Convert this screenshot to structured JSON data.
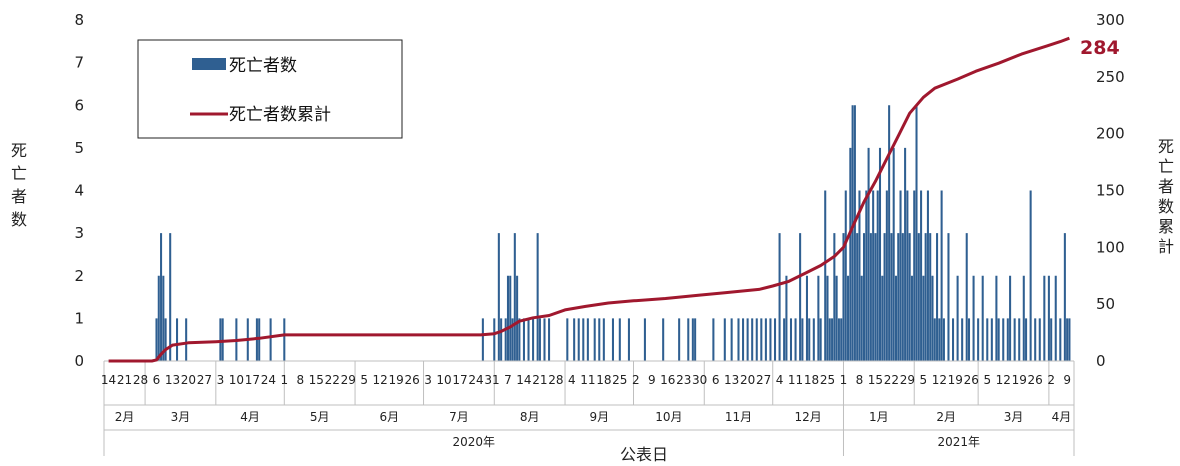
{
  "chart_data": {
    "type": "bar",
    "xlabel": "公表日",
    "ylabel_left": "死亡者数",
    "ylabel_right": "死亡者数累計",
    "ylim_left": [
      0,
      8
    ],
    "ylim_right": [
      0,
      300
    ],
    "left_ticks": [
      "0",
      "1",
      "2",
      "3",
      "4",
      "5",
      "6",
      "7",
      "8"
    ],
    "right_ticks": [
      "0",
      "50",
      "100",
      "150",
      "200",
      "250",
      "300"
    ],
    "grid": false,
    "legend_position": "top-left",
    "colors": {
      "bars": "#2f5f91",
      "line": "#a0182e"
    },
    "series": [
      {
        "name": "死亡者数",
        "type": "bar",
        "axis": "left"
      },
      {
        "name": "死亡者数累計",
        "type": "line",
        "axis": "right"
      }
    ],
    "end_value_label": "284",
    "day_ticks": [
      "14",
      "21",
      "28",
      "6",
      "13",
      "20",
      "27",
      "3",
      "10",
      "17",
      "24",
      "1",
      "8",
      "15",
      "22",
      "29",
      "5",
      "12",
      "19",
      "26",
      "3",
      "10",
      "17",
      "24",
      "31",
      "7",
      "14",
      "21",
      "28",
      "4",
      "11",
      "18",
      "25",
      "2",
      "9",
      "16",
      "23",
      "30",
      "6",
      "13",
      "20",
      "27",
      "4",
      "11",
      "18",
      "25",
      "1",
      "8",
      "15",
      "22",
      "29",
      "5",
      "12",
      "19",
      "26",
      "5",
      "12",
      "19",
      "26",
      "2",
      "9"
    ],
    "month_ticks": [
      "2月",
      "3月",
      "4月",
      "5月",
      "6月",
      "7月",
      "8月",
      "9月",
      "10月",
      "11月",
      "12月",
      "1月",
      "2月",
      "3月",
      "4月"
    ],
    "year_ticks": [
      "2020年",
      "2021年"
    ],
    "daily_bars": [
      {
        "date": "2020-03-06",
        "v": 1
      },
      {
        "date": "2020-03-07",
        "v": 2
      },
      {
        "date": "2020-03-08",
        "v": 3
      },
      {
        "date": "2020-03-09",
        "v": 2
      },
      {
        "date": "2020-03-10",
        "v": 1
      },
      {
        "date": "2020-03-12",
        "v": 3
      },
      {
        "date": "2020-03-15",
        "v": 1
      },
      {
        "date": "2020-03-19",
        "v": 1
      },
      {
        "date": "2020-04-03",
        "v": 1
      },
      {
        "date": "2020-04-04",
        "v": 1
      },
      {
        "date": "2020-04-10",
        "v": 1
      },
      {
        "date": "2020-04-15",
        "v": 1
      },
      {
        "date": "2020-04-19",
        "v": 1
      },
      {
        "date": "2020-04-20",
        "v": 1
      },
      {
        "date": "2020-04-25",
        "v": 1
      },
      {
        "date": "2020-05-01",
        "v": 1
      },
      {
        "date": "2020-07-27",
        "v": 1
      },
      {
        "date": "2020-08-01",
        "v": 1
      },
      {
        "date": "2020-08-03",
        "v": 3
      },
      {
        "date": "2020-08-04",
        "v": 1
      },
      {
        "date": "2020-08-06",
        "v": 1
      },
      {
        "date": "2020-08-07",
        "v": 2
      },
      {
        "date": "2020-08-08",
        "v": 2
      },
      {
        "date": "2020-08-09",
        "v": 1
      },
      {
        "date": "2020-08-10",
        "v": 3
      },
      {
        "date": "2020-08-11",
        "v": 2
      },
      {
        "date": "2020-08-12",
        "v": 1
      },
      {
        "date": "2020-08-14",
        "v": 1
      },
      {
        "date": "2020-08-16",
        "v": 1
      },
      {
        "date": "2020-08-18",
        "v": 1
      },
      {
        "date": "2020-08-20",
        "v": 3
      },
      {
        "date": "2020-08-21",
        "v": 1
      },
      {
        "date": "2020-08-23",
        "v": 1
      },
      {
        "date": "2020-08-25",
        "v": 1
      },
      {
        "date": "2020-09-02",
        "v": 1
      },
      {
        "date": "2020-09-05",
        "v": 1
      },
      {
        "date": "2020-09-07",
        "v": 1
      },
      {
        "date": "2020-09-09",
        "v": 1
      },
      {
        "date": "2020-09-11",
        "v": 1
      },
      {
        "date": "2020-09-14",
        "v": 1
      },
      {
        "date": "2020-09-16",
        "v": 1
      },
      {
        "date": "2020-09-18",
        "v": 1
      },
      {
        "date": "2020-09-22",
        "v": 1
      },
      {
        "date": "2020-09-25",
        "v": 1
      },
      {
        "date": "2020-09-29",
        "v": 1
      },
      {
        "date": "2020-10-06",
        "v": 1
      },
      {
        "date": "2020-10-14",
        "v": 1
      },
      {
        "date": "2020-10-21",
        "v": 1
      },
      {
        "date": "2020-10-25",
        "v": 1
      },
      {
        "date": "2020-10-27",
        "v": 1
      },
      {
        "date": "2020-10-28",
        "v": 1
      },
      {
        "date": "2020-11-05",
        "v": 1
      },
      {
        "date": "2020-11-10",
        "v": 1
      },
      {
        "date": "2020-11-13",
        "v": 1
      },
      {
        "date": "2020-11-16",
        "v": 1
      },
      {
        "date": "2020-11-18",
        "v": 1
      },
      {
        "date": "2020-11-20",
        "v": 1
      },
      {
        "date": "2020-11-22",
        "v": 1
      },
      {
        "date": "2020-11-24",
        "v": 1
      },
      {
        "date": "2020-11-26",
        "v": 1
      },
      {
        "date": "2020-11-28",
        "v": 1
      },
      {
        "date": "2020-11-30",
        "v": 1
      },
      {
        "date": "2020-12-02",
        "v": 1
      },
      {
        "date": "2020-12-04",
        "v": 3
      },
      {
        "date": "2020-12-06",
        "v": 1
      },
      {
        "date": "2020-12-07",
        "v": 2
      },
      {
        "date": "2020-12-09",
        "v": 1
      },
      {
        "date": "2020-12-11",
        "v": 1
      },
      {
        "date": "2020-12-13",
        "v": 3
      },
      {
        "date": "2020-12-14",
        "v": 1
      },
      {
        "date": "2020-12-16",
        "v": 2
      },
      {
        "date": "2020-12-17",
        "v": 1
      },
      {
        "date": "2020-12-19",
        "v": 1
      },
      {
        "date": "2020-12-21",
        "v": 2
      },
      {
        "date": "2020-12-22",
        "v": 1
      },
      {
        "date": "2020-12-24",
        "v": 4
      },
      {
        "date": "2020-12-25",
        "v": 2
      },
      {
        "date": "2020-12-26",
        "v": 1
      },
      {
        "date": "2020-12-27",
        "v": 1
      },
      {
        "date": "2020-12-28",
        "v": 3
      },
      {
        "date": "2020-12-29",
        "v": 2
      },
      {
        "date": "2020-12-30",
        "v": 1
      },
      {
        "date": "2020-12-31",
        "v": 1
      },
      {
        "date": "2021-01-01",
        "v": 3
      },
      {
        "date": "2021-01-02",
        "v": 4
      },
      {
        "date": "2021-01-03",
        "v": 2
      },
      {
        "date": "2021-01-04",
        "v": 5
      },
      {
        "date": "2021-01-05",
        "v": 6
      },
      {
        "date": "2021-01-06",
        "v": 6
      },
      {
        "date": "2021-01-07",
        "v": 3
      },
      {
        "date": "2021-01-08",
        "v": 4
      },
      {
        "date": "2021-01-09",
        "v": 2
      },
      {
        "date": "2021-01-10",
        "v": 3
      },
      {
        "date": "2021-01-11",
        "v": 4
      },
      {
        "date": "2021-01-12",
        "v": 5
      },
      {
        "date": "2021-01-13",
        "v": 3
      },
      {
        "date": "2021-01-14",
        "v": 4
      },
      {
        "date": "2021-01-15",
        "v": 3
      },
      {
        "date": "2021-01-16",
        "v": 4
      },
      {
        "date": "2021-01-17",
        "v": 5
      },
      {
        "date": "2021-01-18",
        "v": 2
      },
      {
        "date": "2021-01-19",
        "v": 3
      },
      {
        "date": "2021-01-20",
        "v": 4
      },
      {
        "date": "2021-01-21",
        "v": 6
      },
      {
        "date": "2021-01-22",
        "v": 3
      },
      {
        "date": "2021-01-23",
        "v": 5
      },
      {
        "date": "2021-01-24",
        "v": 2
      },
      {
        "date": "2021-01-25",
        "v": 3
      },
      {
        "date": "2021-01-26",
        "v": 4
      },
      {
        "date": "2021-01-27",
        "v": 3
      },
      {
        "date": "2021-01-28",
        "v": 5
      },
      {
        "date": "2021-01-29",
        "v": 4
      },
      {
        "date": "2021-01-30",
        "v": 3
      },
      {
        "date": "2021-01-31",
        "v": 2
      },
      {
        "date": "2021-02-01",
        "v": 4
      },
      {
        "date": "2021-02-02",
        "v": 6
      },
      {
        "date": "2021-02-03",
        "v": 3
      },
      {
        "date": "2021-02-04",
        "v": 4
      },
      {
        "date": "2021-02-05",
        "v": 2
      },
      {
        "date": "2021-02-06",
        "v": 3
      },
      {
        "date": "2021-02-07",
        "v": 4
      },
      {
        "date": "2021-02-08",
        "v": 3
      },
      {
        "date": "2021-02-09",
        "v": 2
      },
      {
        "date": "2021-02-10",
        "v": 1
      },
      {
        "date": "2021-02-11",
        "v": 3
      },
      {
        "date": "2021-02-12",
        "v": 1
      },
      {
        "date": "2021-02-13",
        "v": 4
      },
      {
        "date": "2021-02-14",
        "v": 1
      },
      {
        "date": "2021-02-16",
        "v": 3
      },
      {
        "date": "2021-02-18",
        "v": 1
      },
      {
        "date": "2021-02-20",
        "v": 2
      },
      {
        "date": "2021-02-22",
        "v": 1
      },
      {
        "date": "2021-02-24",
        "v": 3
      },
      {
        "date": "2021-02-25",
        "v": 1
      },
      {
        "date": "2021-02-27",
        "v": 2
      },
      {
        "date": "2021-03-01",
        "v": 1
      },
      {
        "date": "2021-03-03",
        "v": 2
      },
      {
        "date": "2021-03-05",
        "v": 1
      },
      {
        "date": "2021-03-07",
        "v": 1
      },
      {
        "date": "2021-03-09",
        "v": 2
      },
      {
        "date": "2021-03-10",
        "v": 1
      },
      {
        "date": "2021-03-12",
        "v": 1
      },
      {
        "date": "2021-03-14",
        "v": 1
      },
      {
        "date": "2021-03-15",
        "v": 2
      },
      {
        "date": "2021-03-17",
        "v": 1
      },
      {
        "date": "2021-03-19",
        "v": 1
      },
      {
        "date": "2021-03-21",
        "v": 2
      },
      {
        "date": "2021-03-22",
        "v": 1
      },
      {
        "date": "2021-03-24",
        "v": 4
      },
      {
        "date": "2021-03-26",
        "v": 1
      },
      {
        "date": "2021-03-28",
        "v": 1
      },
      {
        "date": "2021-03-30",
        "v": 2
      },
      {
        "date": "2021-04-01",
        "v": 2
      },
      {
        "date": "2021-04-02",
        "v": 1
      },
      {
        "date": "2021-04-04",
        "v": 2
      },
      {
        "date": "2021-04-06",
        "v": 1
      },
      {
        "date": "2021-04-08",
        "v": 3
      },
      {
        "date": "2021-04-09",
        "v": 1
      },
      {
        "date": "2021-04-10",
        "v": 1
      }
    ],
    "cumulative": [
      {
        "date": "2020-02-14",
        "v": 0
      },
      {
        "date": "2020-03-04",
        "v": 0
      },
      {
        "date": "2020-03-06",
        "v": 1
      },
      {
        "date": "2020-03-08",
        "v": 6
      },
      {
        "date": "2020-03-10",
        "v": 10
      },
      {
        "date": "2020-03-13",
        "v": 14
      },
      {
        "date": "2020-03-20",
        "v": 16
      },
      {
        "date": "2020-04-01",
        "v": 17
      },
      {
        "date": "2020-04-10",
        "v": 18
      },
      {
        "date": "2020-04-20",
        "v": 20
      },
      {
        "date": "2020-05-01",
        "v": 23
      },
      {
        "date": "2020-07-26",
        "v": 23
      },
      {
        "date": "2020-08-01",
        "v": 24
      },
      {
        "date": "2020-08-04",
        "v": 26
      },
      {
        "date": "2020-08-08",
        "v": 30
      },
      {
        "date": "2020-08-12",
        "v": 35
      },
      {
        "date": "2020-08-18",
        "v": 38
      },
      {
        "date": "2020-08-25",
        "v": 40
      },
      {
        "date": "2020-09-01",
        "v": 45
      },
      {
        "date": "2020-09-10",
        "v": 48
      },
      {
        "date": "2020-09-20",
        "v": 51
      },
      {
        "date": "2020-10-01",
        "v": 53
      },
      {
        "date": "2020-10-15",
        "v": 55
      },
      {
        "date": "2020-10-30",
        "v": 58
      },
      {
        "date": "2020-11-10",
        "v": 60
      },
      {
        "date": "2020-11-25",
        "v": 63
      },
      {
        "date": "2020-12-01",
        "v": 66
      },
      {
        "date": "2020-12-08",
        "v": 70
      },
      {
        "date": "2020-12-15",
        "v": 77
      },
      {
        "date": "2020-12-22",
        "v": 84
      },
      {
        "date": "2020-12-28",
        "v": 92
      },
      {
        "date": "2021-01-01",
        "v": 100
      },
      {
        "date": "2021-01-05",
        "v": 118
      },
      {
        "date": "2021-01-10",
        "v": 140
      },
      {
        "date": "2021-01-15",
        "v": 158
      },
      {
        "date": "2021-01-20",
        "v": 178
      },
      {
        "date": "2021-01-25",
        "v": 198
      },
      {
        "date": "2021-01-30",
        "v": 218
      },
      {
        "date": "2021-02-05",
        "v": 232
      },
      {
        "date": "2021-02-10",
        "v": 240
      },
      {
        "date": "2021-02-20",
        "v": 248
      },
      {
        "date": "2021-02-28",
        "v": 255
      },
      {
        "date": "2021-03-10",
        "v": 262
      },
      {
        "date": "2021-03-20",
        "v": 270
      },
      {
        "date": "2021-03-31",
        "v": 277
      },
      {
        "date": "2021-04-06",
        "v": 281
      },
      {
        "date": "2021-04-10",
        "v": 284
      }
    ]
  }
}
